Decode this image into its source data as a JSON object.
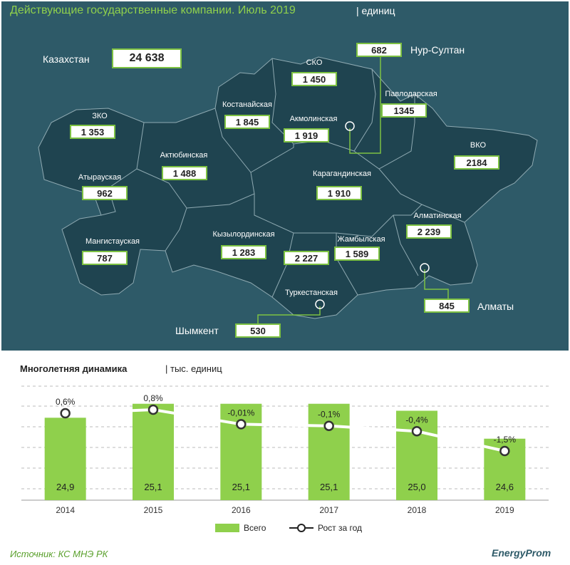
{
  "header": {
    "title": "Действующие государственные компании. Июль 2019",
    "unit": "| единиц"
  },
  "kazakhstan": {
    "label": "Казахстан",
    "value": "24 638"
  },
  "regions": [
    {
      "name": "ЗКО",
      "value": "1 353"
    },
    {
      "name": "Атырауская",
      "value": "962"
    },
    {
      "name": "Мангистауская",
      "value": "787"
    },
    {
      "name": "Актюбинская",
      "value": "1 488"
    },
    {
      "name": "Костанайская",
      "value": "1 845"
    },
    {
      "name": "СКО",
      "value": "1 450"
    },
    {
      "name": "Акмолинская",
      "value": "1 919"
    },
    {
      "name": "Павлодарская",
      "value": "1345"
    },
    {
      "name": "ВКО",
      "value": "2184"
    },
    {
      "name": "Карагандинская",
      "value": "1 910"
    },
    {
      "name": "Кызылординская",
      "value": "1 283"
    },
    {
      "name": "Жамбылская",
      "value": "1 589"
    },
    {
      "name": "Алматинская",
      "value": "2 239"
    },
    {
      "name": "Туркестанская",
      "value": "2 227"
    }
  ],
  "cities": [
    {
      "name": "Нур-Султан",
      "value": "682"
    },
    {
      "name": "Алматы",
      "value": "845"
    },
    {
      "name": "Шымкент",
      "value": "530"
    }
  ],
  "chart_data": {
    "type": "bar",
    "title": "Многолетняя  динамика",
    "unit": "| тыс. единиц",
    "categories": [
      "2014",
      "2015",
      "2016",
      "2017",
      "2018",
      "2019"
    ],
    "series": [
      {
        "name": "Всего",
        "type": "bar",
        "values": [
          24.9,
          25.1,
          25.1,
          25.1,
          25.0,
          24.6
        ],
        "labels": [
          "24,9",
          "25,1",
          "25,1",
          "25,1",
          "25,0",
          "24,6"
        ],
        "color": "#8fd04c"
      },
      {
        "name": "Рост за год",
        "type": "line",
        "values": [
          0.6,
          0.8,
          -0.01,
          -0.1,
          -0.4,
          -1.5
        ],
        "labels": [
          "0,6%",
          "0,8%",
          "-0,01%",
          "-0,1%",
          "-0,4%",
          "-1,5%"
        ],
        "color": "#ffffff"
      }
    ],
    "grid": true,
    "legend": "bottom"
  },
  "footer": {
    "source": "Источник: КС МНЭ РК",
    "brand": "EnergyProm"
  }
}
